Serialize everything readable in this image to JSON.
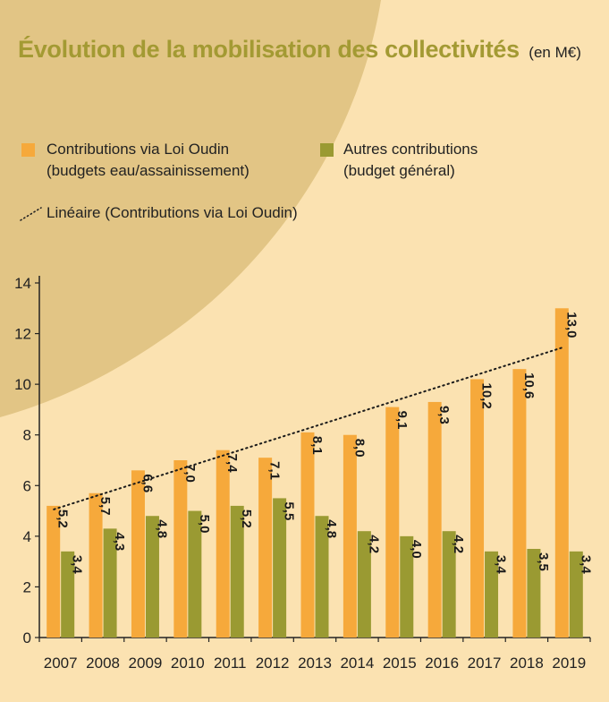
{
  "title": "Évolution de la mobilisation des collectivités",
  "unit": "(en M€)",
  "legend": {
    "loi_oudin": {
      "line1": "Contributions via Loi Oudin",
      "line2": "(budgets eau/assainissement)"
    },
    "autres": {
      "line1": "Autres contributions",
      "line2": "(budget général)"
    },
    "lineaire": "Linéaire (Contributions via Loi Oudin)"
  },
  "colors": {
    "background": "#fbe2b1",
    "arc": "#e2c585",
    "loi_oudin": "#f6a93b",
    "autres": "#9a9a32",
    "title": "#a39a33",
    "axis": "#222222"
  },
  "chart_data": {
    "type": "bar",
    "categories": [
      "2007",
      "2008",
      "2009",
      "2010",
      "2011",
      "2012",
      "2013",
      "2014",
      "2015",
      "2016",
      "2017",
      "2018",
      "2019"
    ],
    "series": [
      {
        "name": "Contributions via Loi Oudin",
        "color": "#f6a93b",
        "values": [
          5.2,
          5.7,
          6.6,
          7.0,
          7.4,
          7.1,
          8.1,
          8.0,
          9.1,
          9.3,
          10.2,
          10.6,
          13.0
        ],
        "labels": [
          "5,2",
          "5,7",
          "6,6",
          "7,0",
          "7,4",
          "7,1",
          "8,1",
          "8,0",
          "9,1",
          "9,3",
          "10,2",
          "10,6",
          "13,0"
        ]
      },
      {
        "name": "Autres contributions",
        "color": "#9a9a32",
        "values": [
          3.4,
          4.3,
          4.8,
          5.0,
          5.2,
          5.5,
          4.8,
          4.2,
          4.0,
          4.2,
          3.4,
          3.5,
          3.4
        ],
        "labels": [
          "3,4",
          "4,3",
          "4,8",
          "5,0",
          "5,2",
          "5,5",
          "4,8",
          "4,2",
          "4,0",
          "4,2",
          "3,4",
          "3,5",
          "3,4"
        ]
      }
    ],
    "trendline": {
      "name": "Linéaire (Contributions via Loi Oudin)",
      "type": "linear",
      "style": "dotted"
    },
    "yticks": [
      "0",
      "2",
      "4",
      "6",
      "8",
      "10",
      "12",
      "14"
    ],
    "ylim": [
      0,
      14
    ],
    "grid": false,
    "legend_position": "top"
  }
}
